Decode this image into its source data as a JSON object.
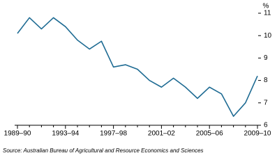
{
  "chart_data": {
    "type": "line",
    "y_unit": "%",
    "source": "Source: Australian Bureau of Agricultural and Resource Economics and Sciences",
    "categories": [
      "1989–90",
      null,
      null,
      null,
      "1993–94",
      null,
      null,
      null,
      "1997–98",
      null,
      null,
      null,
      "2001–02",
      null,
      null,
      null,
      "2005–06",
      null,
      null,
      null,
      "2009–10"
    ],
    "values": [
      10.1,
      10.8,
      10.3,
      10.8,
      10.4,
      9.8,
      9.4,
      9.75,
      8.6,
      8.7,
      8.5,
      8.0,
      7.7,
      8.1,
      7.7,
      7.2,
      7.7,
      7.4,
      6.4,
      7.0,
      8.2
    ],
    "color": "#1e6b93",
    "ylim": [
      6,
      11
    ],
    "yticks": [
      6,
      7,
      8,
      9,
      10,
      11
    ]
  }
}
